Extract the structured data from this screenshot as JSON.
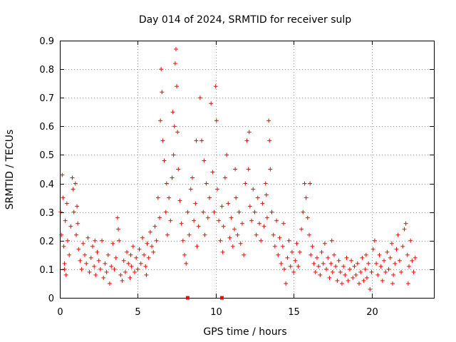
{
  "chart_data": {
    "type": "scatter",
    "title": "Day 014 of 2024, SRMTID for receiver sulp",
    "xlabel": "GPS time / hours",
    "ylabel": "SRMTID / TECUs",
    "xlim": [
      0,
      24
    ],
    "ylim": [
      0,
      0.9
    ],
    "xticks": [
      0,
      5,
      10,
      15,
      20
    ],
    "xtick_labels": [
      "0",
      "5",
      "10",
      "15",
      "20"
    ],
    "yticks": [
      0,
      0.1,
      0.2,
      0.3,
      0.4,
      0.5,
      0.6,
      0.7,
      0.8,
      0.9
    ],
    "ytick_labels": [
      "0",
      "0.1",
      "0.2",
      "0.3",
      "0.4",
      "0.5",
      "0.6",
      "0.7",
      "0.8",
      "0.9"
    ],
    "grid": true,
    "marker": "plus",
    "color": "#ff0000",
    "series": [
      {
        "name": "SRMTID",
        "points": [
          [
            0.05,
            0.3
          ],
          [
            0.1,
            0.22
          ],
          [
            0.15,
            0.43
          ],
          [
            0.2,
            0.35
          ],
          [
            0.25,
            0.18
          ],
          [
            0.3,
            0.12
          ],
          [
            0.35,
            0.27
          ],
          [
            0.4,
            0.08
          ],
          [
            0.45,
            0.33
          ],
          [
            0.5,
            0.2
          ],
          [
            0.6,
            0.15
          ],
          [
            0.7,
            0.25
          ],
          [
            0.8,
            0.42
          ],
          [
            0.85,
            0.38
          ],
          [
            0.9,
            0.3
          ],
          [
            1.0,
            0.4
          ],
          [
            1.05,
            0.22
          ],
          [
            1.1,
            0.32
          ],
          [
            1.2,
            0.17
          ],
          [
            1.3,
            0.13
          ],
          [
            1.4,
            0.1
          ],
          [
            1.5,
            0.19
          ],
          [
            1.6,
            0.15
          ],
          [
            1.7,
            0.12
          ],
          [
            1.8,
            0.21
          ],
          [
            1.9,
            0.09
          ],
          [
            2.0,
            0.14
          ],
          [
            2.1,
            0.18
          ],
          [
            2.2,
            0.11
          ],
          [
            2.3,
            0.08
          ],
          [
            2.4,
            0.16
          ],
          [
            2.5,
            0.13
          ],
          [
            2.6,
            0.1
          ],
          [
            2.7,
            0.2
          ],
          [
            2.8,
            0.07
          ],
          [
            2.9,
            0.12
          ],
          [
            3.0,
            0.09
          ],
          [
            3.1,
            0.15
          ],
          [
            3.2,
            0.05
          ],
          [
            3.3,
            0.11
          ],
          [
            3.4,
            0.19
          ],
          [
            3.5,
            0.1
          ],
          [
            3.6,
            0.14
          ],
          [
            3.7,
            0.28
          ],
          [
            3.75,
            0.24
          ],
          [
            3.8,
            0.2
          ],
          [
            3.9,
            0.08
          ],
          [
            4.0,
            0.06
          ],
          [
            4.1,
            0.13
          ],
          [
            4.2,
            0.09
          ],
          [
            4.3,
            0.16
          ],
          [
            4.4,
            0.12
          ],
          [
            4.5,
            0.07
          ],
          [
            4.6,
            0.11
          ],
          [
            4.7,
            0.18
          ],
          [
            4.8,
            0.09
          ],
          [
            4.9,
            0.14
          ],
          [
            5.0,
            0.1
          ],
          [
            5.1,
            0.17
          ],
          [
            5.2,
            0.12
          ],
          [
            5.3,
            0.21
          ],
          [
            5.4,
            0.15
          ],
          [
            5.5,
            0.11
          ],
          [
            5.6,
            0.19
          ],
          [
            5.7,
            0.14
          ],
          [
            5.8,
            0.23
          ],
          [
            5.9,
            0.18
          ],
          [
            6.0,
            0.16
          ],
          [
            6.1,
            0.25
          ],
          [
            6.2,
            0.2
          ],
          [
            6.3,
            0.35
          ],
          [
            6.4,
            0.28
          ],
          [
            6.45,
            0.62
          ],
          [
            6.5,
            0.8
          ],
          [
            6.55,
            0.72
          ],
          [
            6.6,
            0.55
          ],
          [
            6.7,
            0.48
          ],
          [
            6.8,
            0.3
          ],
          [
            6.9,
            0.22
          ],
          [
            7.0,
            0.35
          ],
          [
            7.1,
            0.27
          ],
          [
            7.2,
            0.42
          ],
          [
            7.3,
            0.5
          ],
          [
            7.35,
            0.6
          ],
          [
            7.4,
            0.82
          ],
          [
            7.45,
            0.87
          ],
          [
            7.5,
            0.74
          ],
          [
            7.55,
            0.58
          ],
          [
            7.6,
            0.45
          ],
          [
            7.7,
            0.34
          ],
          [
            7.8,
            0.26
          ],
          [
            7.9,
            0.2
          ],
          [
            8.0,
            0.15
          ],
          [
            8.1,
            0.12
          ],
          [
            8.2,
            0.3
          ],
          [
            8.3,
            0.22
          ],
          [
            8.4,
            0.38
          ],
          [
            8.5,
            0.42
          ],
          [
            8.6,
            0.27
          ],
          [
            8.7,
            0.33
          ],
          [
            8.8,
            0.18
          ],
          [
            8.9,
            0.25
          ],
          [
            9.0,
            0.7
          ],
          [
            9.1,
            0.55
          ],
          [
            9.2,
            0.3
          ],
          [
            9.3,
            0.22
          ],
          [
            9.4,
            0.4
          ],
          [
            9.5,
            0.28
          ],
          [
            9.6,
            0.35
          ],
          [
            9.7,
            0.68
          ],
          [
            9.8,
            0.44
          ],
          [
            9.9,
            0.3
          ],
          [
            10.0,
            0.74
          ],
          [
            10.05,
            0.62
          ],
          [
            10.1,
            0.38
          ],
          [
            10.2,
            0.27
          ],
          [
            10.3,
            0.2
          ],
          [
            10.4,
            0.32
          ],
          [
            10.5,
            0.25
          ],
          [
            10.6,
            0.42
          ],
          [
            10.7,
            0.5
          ],
          [
            10.8,
            0.33
          ],
          [
            10.9,
            0.21
          ],
          [
            11.0,
            0.28
          ],
          [
            11.1,
            0.18
          ],
          [
            11.2,
            0.24
          ],
          [
            11.3,
            0.35
          ],
          [
            11.4,
            0.22
          ],
          [
            11.5,
            0.3
          ],
          [
            11.6,
            0.19
          ],
          [
            11.7,
            0.26
          ],
          [
            11.8,
            0.15
          ],
          [
            11.9,
            0.4
          ],
          [
            12.0,
            0.55
          ],
          [
            12.1,
            0.45
          ],
          [
            12.2,
            0.32
          ],
          [
            12.3,
            0.27
          ],
          [
            12.4,
            0.38
          ],
          [
            12.5,
            0.3
          ],
          [
            12.6,
            0.22
          ],
          [
            12.7,
            0.35
          ],
          [
            12.8,
            0.26
          ],
          [
            12.9,
            0.2
          ],
          [
            13.0,
            0.33
          ],
          [
            13.1,
            0.25
          ],
          [
            13.2,
            0.4
          ],
          [
            13.3,
            0.28
          ],
          [
            13.4,
            0.62
          ],
          [
            13.45,
            0.55
          ],
          [
            13.5,
            0.45
          ],
          [
            13.6,
            0.3
          ],
          [
            13.7,
            0.22
          ],
          [
            13.8,
            0.18
          ],
          [
            13.9,
            0.27
          ],
          [
            14.0,
            0.15
          ],
          [
            14.1,
            0.21
          ],
          [
            14.2,
            0.12
          ],
          [
            14.3,
            0.18
          ],
          [
            14.4,
            0.1
          ],
          [
            14.5,
            0.05
          ],
          [
            14.6,
            0.14
          ],
          [
            14.7,
            0.2
          ],
          [
            14.8,
            0.11
          ],
          [
            14.9,
            0.16
          ],
          [
            15.0,
            0.09
          ],
          [
            15.1,
            0.13
          ],
          [
            15.2,
            0.19
          ],
          [
            15.3,
            0.11
          ],
          [
            15.4,
            0.16
          ],
          [
            15.5,
            0.24
          ],
          [
            15.6,
            0.3
          ],
          [
            15.7,
            0.4
          ],
          [
            15.8,
            0.35
          ],
          [
            15.9,
            0.28
          ],
          [
            16.0,
            0.22
          ],
          [
            16.1,
            0.15
          ],
          [
            16.2,
            0.18
          ],
          [
            16.3,
            0.12
          ],
          [
            16.4,
            0.09
          ],
          [
            16.5,
            0.14
          ],
          [
            16.6,
            0.11
          ],
          [
            16.7,
            0.08
          ],
          [
            16.8,
            0.16
          ],
          [
            16.9,
            0.12
          ],
          [
            17.0,
            0.19
          ],
          [
            17.1,
            0.1
          ],
          [
            17.2,
            0.14
          ],
          [
            17.3,
            0.07
          ],
          [
            17.4,
            0.12
          ],
          [
            17.5,
            0.09
          ],
          [
            17.6,
            0.15
          ],
          [
            17.7,
            0.11
          ],
          [
            17.8,
            0.06
          ],
          [
            17.9,
            0.13
          ],
          [
            18.0,
            0.09
          ],
          [
            18.1,
            0.05
          ],
          [
            18.2,
            0.11
          ],
          [
            18.3,
            0.08
          ],
          [
            18.4,
            0.14
          ],
          [
            18.5,
            0.06
          ],
          [
            18.6,
            0.1
          ],
          [
            18.7,
            0.13
          ],
          [
            18.8,
            0.07
          ],
          [
            18.9,
            0.11
          ],
          [
            19.0,
            0.08
          ],
          [
            19.1,
            0.12
          ],
          [
            19.2,
            0.05
          ],
          [
            19.3,
            0.09
          ],
          [
            19.4,
            0.14
          ],
          [
            19.5,
            0.06
          ],
          [
            19.6,
            0.1
          ],
          [
            19.7,
            0.07
          ],
          [
            19.8,
            0.12
          ],
          [
            19.9,
            0.03
          ],
          [
            20.0,
            0.09
          ],
          [
            20.1,
            0.17
          ],
          [
            20.2,
            0.2
          ],
          [
            20.3,
            0.12
          ],
          [
            20.4,
            0.08
          ],
          [
            20.5,
            0.15
          ],
          [
            20.6,
            0.11
          ],
          [
            20.7,
            0.06
          ],
          [
            20.8,
            0.13
          ],
          [
            20.9,
            0.09
          ],
          [
            21.0,
            0.16
          ],
          [
            21.1,
            0.1
          ],
          [
            21.2,
            0.14
          ],
          [
            21.3,
            0.19
          ],
          [
            21.4,
            0.08
          ],
          [
            21.5,
            0.12
          ],
          [
            21.6,
            0.17
          ],
          [
            21.7,
            0.22
          ],
          [
            21.8,
            0.13
          ],
          [
            21.9,
            0.09
          ],
          [
            22.0,
            0.18
          ],
          [
            22.1,
            0.24
          ],
          [
            22.2,
            0.26
          ],
          [
            22.3,
            0.15
          ],
          [
            22.4,
            0.11
          ],
          [
            22.5,
            0.2
          ],
          [
            22.6,
            0.13
          ],
          [
            22.7,
            0.09
          ],
          [
            22.8,
            0.14
          ],
          [
            0.3,
            0.1
          ],
          [
            1.15,
            0.26
          ],
          [
            2.25,
            0.2
          ],
          [
            4.55,
            0.15
          ],
          [
            5.55,
            0.08
          ],
          [
            6.85,
            0.4
          ],
          [
            7.25,
            0.65
          ],
          [
            8.75,
            0.55
          ],
          [
            9.25,
            0.48
          ],
          [
            10.45,
            0.16
          ],
          [
            11.25,
            0.45
          ],
          [
            12.15,
            0.58
          ],
          [
            13.25,
            0.36
          ],
          [
            14.35,
            0.26
          ],
          [
            16.05,
            0.4
          ],
          [
            17.45,
            0.2
          ],
          [
            19.65,
            0.15
          ],
          [
            21.35,
            0.05
          ],
          [
            22.35,
            0.05
          ]
        ]
      }
    ],
    "baseline_markers": [
      8.2,
      10.4
    ]
  }
}
